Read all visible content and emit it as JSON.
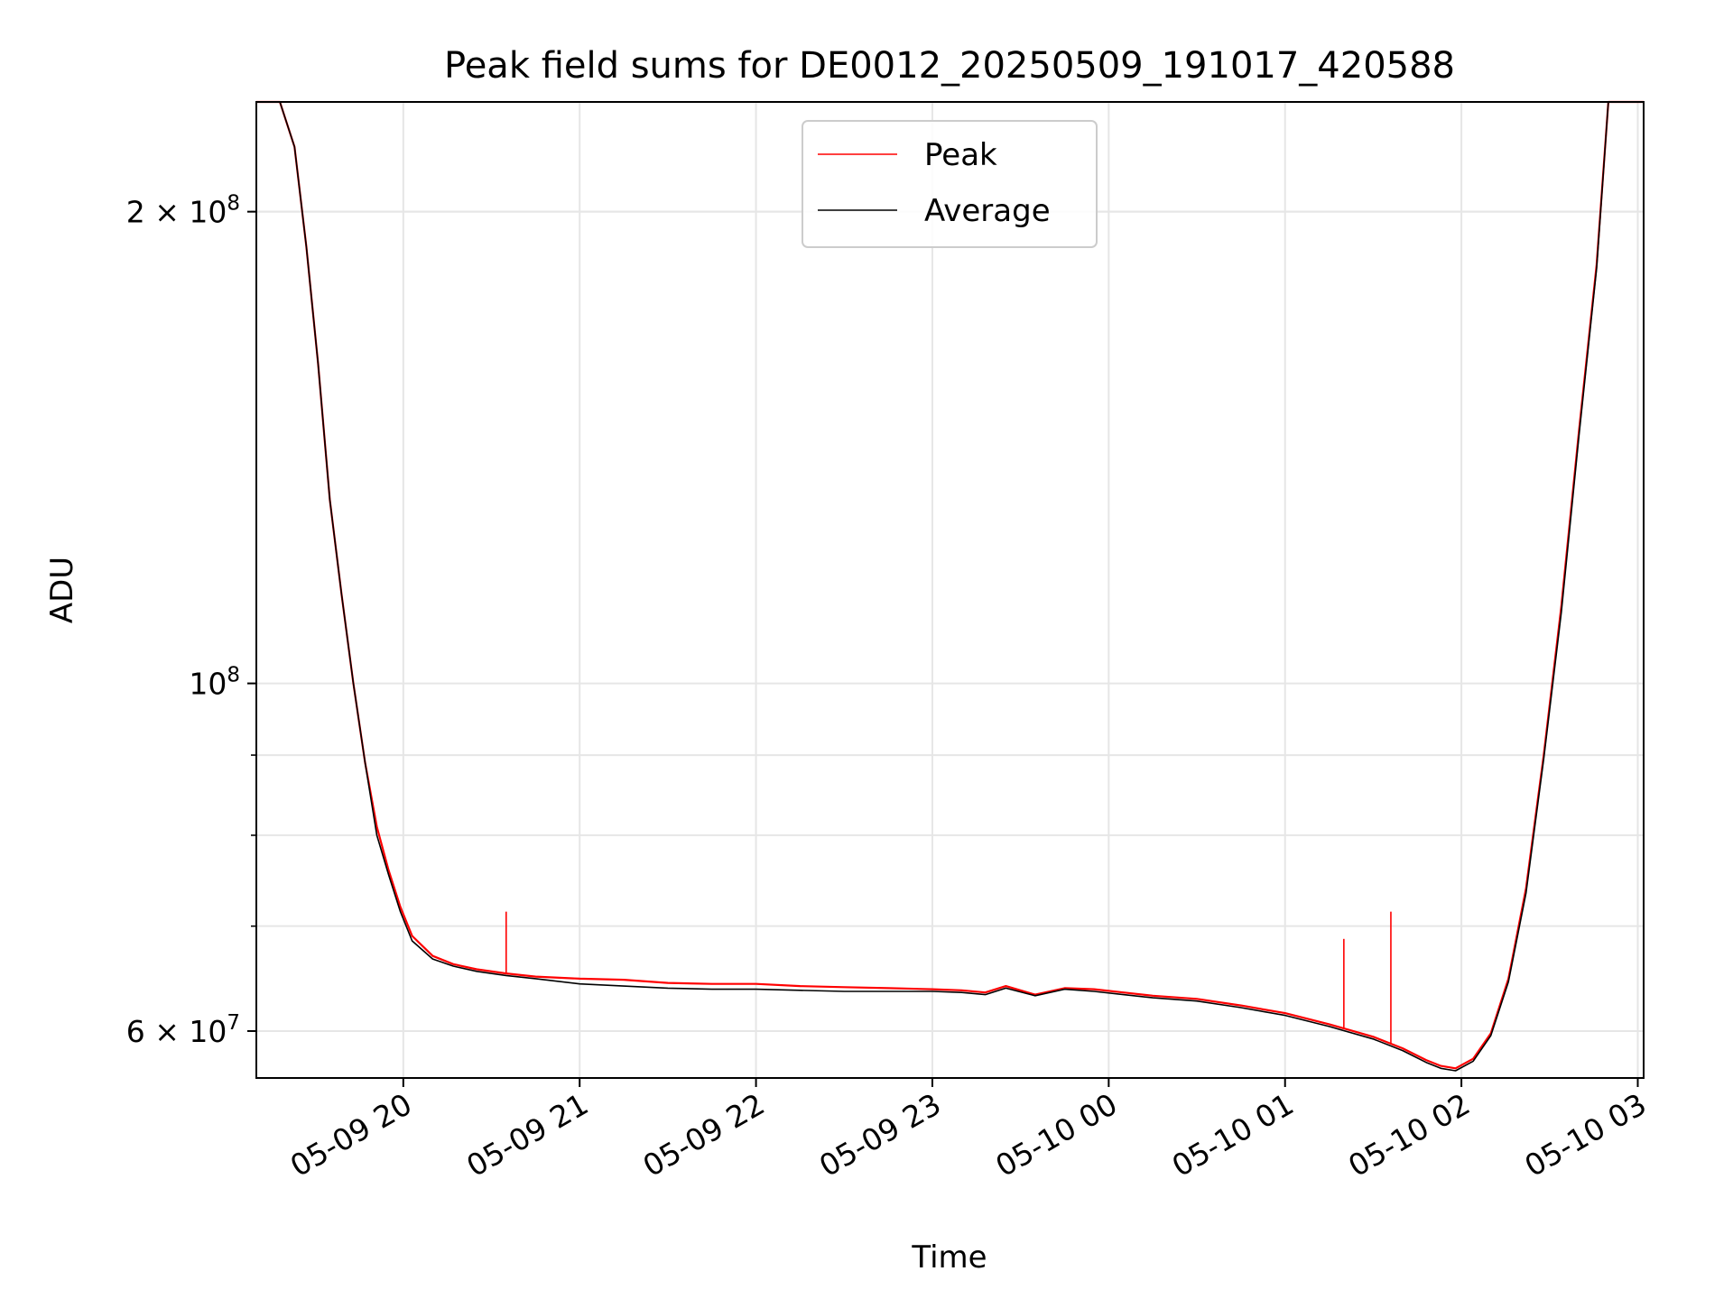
{
  "chart_data": {
    "type": "line",
    "title": "Peak field sums for DE0012_20250509_191017_420588",
    "xlabel": "Time",
    "ylabel": "ADU",
    "yscale": "log",
    "xlim": [
      "2025-05-09 19:10",
      "2025-05-10 03:02"
    ],
    "ylim": [
      56000000,
      235000000
    ],
    "grid": true,
    "legend_position": "top-center",
    "x_ticks": [
      {
        "value": "2025-05-09 20:00",
        "label": "05-09 20"
      },
      {
        "value": "2025-05-09 21:00",
        "label": "05-09 21"
      },
      {
        "value": "2025-05-09 22:00",
        "label": "05-09 22"
      },
      {
        "value": "2025-05-09 23:00",
        "label": "05-09 23"
      },
      {
        "value": "2025-05-10 00:00",
        "label": "05-10 00"
      },
      {
        "value": "2025-05-10 01:00",
        "label": "05-10 01"
      },
      {
        "value": "2025-05-10 02:00",
        "label": "05-10 02"
      },
      {
        "value": "2025-05-10 03:00",
        "label": "05-10 03"
      }
    ],
    "y_ticks_labeled": [
      {
        "value": 200000000,
        "mantissa": "2 × 10",
        "exp": "8"
      },
      {
        "value": 100000000,
        "mantissa": "10",
        "exp": "8"
      },
      {
        "value": 60000000,
        "mantissa": "6 × 10",
        "exp": "7"
      }
    ],
    "y_ticks_minor": [
      60000000,
      70000000,
      80000000,
      90000000,
      200000000
    ],
    "series": [
      {
        "name": "Peak",
        "color": "#ff0000",
        "x": [
          "2025-05-09 19:10",
          "2025-05-09 19:18",
          "2025-05-09 19:23",
          "2025-05-09 19:27",
          "2025-05-09 19:31",
          "2025-05-09 19:35",
          "2025-05-09 19:39",
          "2025-05-09 19:43",
          "2025-05-09 19:47",
          "2025-05-09 19:51",
          "2025-05-09 19:55",
          "2025-05-09 19:59",
          "2025-05-09 20:03",
          "2025-05-09 20:10",
          "2025-05-09 20:17",
          "2025-05-09 20:25",
          "2025-05-09 20:35",
          "2025-05-09 20:45",
          "2025-05-09 21:00",
          "2025-05-09 21:15",
          "2025-05-09 21:30",
          "2025-05-09 21:45",
          "2025-05-09 22:00",
          "2025-05-09 22:15",
          "2025-05-09 22:30",
          "2025-05-09 22:45",
          "2025-05-09 23:00",
          "2025-05-09 23:10",
          "2025-05-09 23:18",
          "2025-05-09 23:25",
          "2025-05-09 23:35",
          "2025-05-09 23:45",
          "2025-05-09 23:55",
          "2025-05-10 00:05",
          "2025-05-10 00:15",
          "2025-05-10 00:30",
          "2025-05-10 00:45",
          "2025-05-10 01:00",
          "2025-05-10 01:15",
          "2025-05-10 01:30",
          "2025-05-10 01:40",
          "2025-05-10 01:48",
          "2025-05-10 01:53",
          "2025-05-10 01:58",
          "2025-05-10 02:04",
          "2025-05-10 02:10",
          "2025-05-10 02:16",
          "2025-05-10 02:22",
          "2025-05-10 02:28",
          "2025-05-10 02:34",
          "2025-05-10 02:40",
          "2025-05-10 02:46",
          "2025-05-10 02:50",
          "2025-05-10 03:02"
        ],
        "values": [
          235000000,
          235000000,
          220000000,
          190000000,
          160000000,
          131000000,
          114000000,
          100000000,
          89000000,
          81000000,
          76000000,
          72000000,
          69000000,
          67000000,
          66200000,
          65700000,
          65300000,
          65000000,
          64800000,
          64700000,
          64400000,
          64300000,
          64300000,
          64100000,
          64000000,
          63900000,
          63800000,
          63700000,
          63500000,
          64100000,
          63300000,
          63900000,
          63800000,
          63500000,
          63200000,
          62900000,
          62300000,
          61600000,
          60600000,
          59500000,
          58500000,
          57500000,
          57000000,
          56800000,
          57600000,
          59800000,
          64800000,
          74000000,
          90000000,
          112000000,
          145000000,
          185000000,
          235000000,
          235000000
        ],
        "spikes": [
          {
            "x": "2025-05-09 20:35",
            "value": 71500000
          },
          {
            "x": "2025-05-10 01:20",
            "value": 68700000
          },
          {
            "x": "2025-05-10 01:36",
            "value": 71500000
          }
        ]
      },
      {
        "name": "Average",
        "color": "#000000",
        "x": [
          "2025-05-09 19:10",
          "2025-05-09 19:18",
          "2025-05-09 19:23",
          "2025-05-09 19:27",
          "2025-05-09 19:31",
          "2025-05-09 19:35",
          "2025-05-09 19:39",
          "2025-05-09 19:43",
          "2025-05-09 19:47",
          "2025-05-09 19:51",
          "2025-05-09 19:55",
          "2025-05-09 19:59",
          "2025-05-09 20:03",
          "2025-05-09 20:10",
          "2025-05-09 20:17",
          "2025-05-09 20:25",
          "2025-05-09 20:35",
          "2025-05-09 20:45",
          "2025-05-09 21:00",
          "2025-05-09 21:15",
          "2025-05-09 21:30",
          "2025-05-09 21:45",
          "2025-05-09 22:00",
          "2025-05-09 22:15",
          "2025-05-09 22:30",
          "2025-05-09 22:45",
          "2025-05-09 23:00",
          "2025-05-09 23:10",
          "2025-05-09 23:18",
          "2025-05-09 23:25",
          "2025-05-09 23:35",
          "2025-05-09 23:45",
          "2025-05-09 23:55",
          "2025-05-10 00:05",
          "2025-05-10 00:15",
          "2025-05-10 00:30",
          "2025-05-10 00:45",
          "2025-05-10 01:00",
          "2025-05-10 01:15",
          "2025-05-10 01:30",
          "2025-05-10 01:40",
          "2025-05-10 01:48",
          "2025-05-10 01:53",
          "2025-05-10 01:58",
          "2025-05-10 02:04",
          "2025-05-10 02:10",
          "2025-05-10 02:16",
          "2025-05-10 02:22",
          "2025-05-10 02:28",
          "2025-05-10 02:34",
          "2025-05-10 02:40",
          "2025-05-10 02:46",
          "2025-05-10 02:50",
          "2025-05-10 03:02"
        ],
        "values": [
          235000000,
          235000000,
          220000000,
          190000000,
          160000000,
          131000000,
          114000000,
          100000000,
          89000000,
          80000000,
          75500000,
          71500000,
          68500000,
          66700000,
          66000000,
          65500000,
          65100000,
          64800000,
          64300000,
          64100000,
          63900000,
          63800000,
          63800000,
          63700000,
          63600000,
          63600000,
          63600000,
          63500000,
          63300000,
          63900000,
          63200000,
          63800000,
          63600000,
          63300000,
          63000000,
          62700000,
          62100000,
          61400000,
          60400000,
          59300000,
          58300000,
          57300000,
          56800000,
          56600000,
          57400000,
          59600000,
          64500000,
          73500000,
          89500000,
          111000000,
          144000000,
          184000000,
          235000000,
          235000000
        ]
      }
    ]
  }
}
